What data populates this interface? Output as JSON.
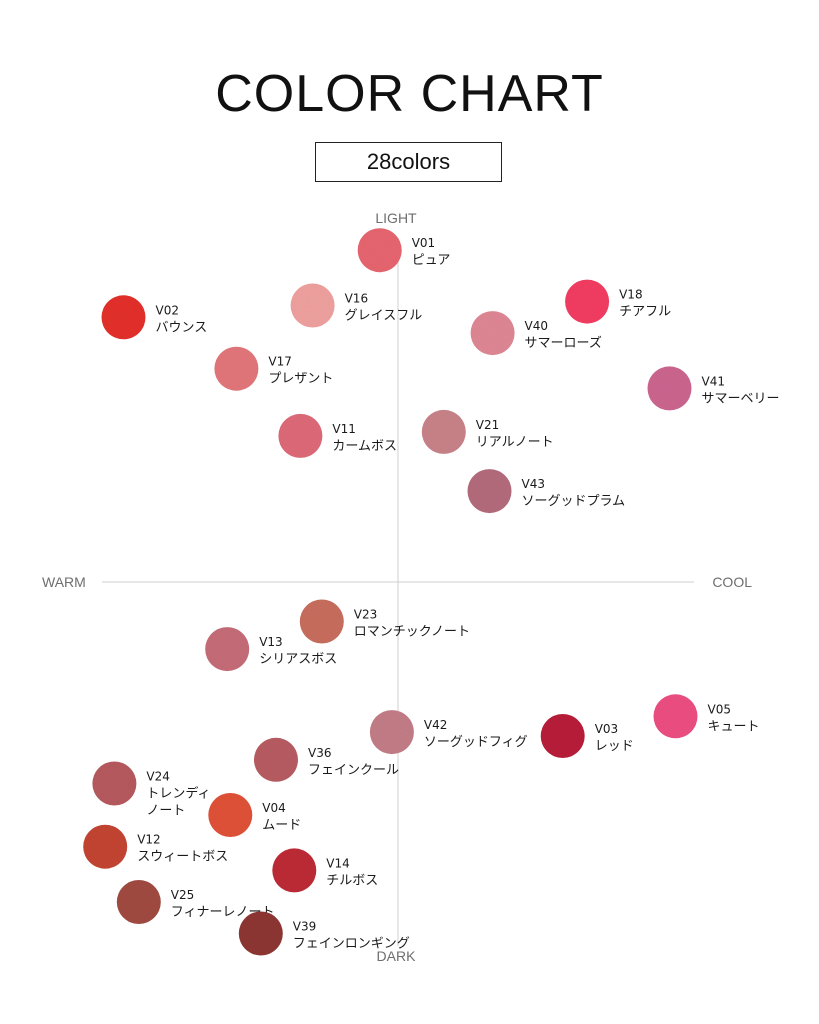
{
  "header": {
    "title": "COLOR CHART",
    "badge": "28colors"
  },
  "chart_data": {
    "type": "scatter",
    "title": "COLOR CHART",
    "subtitle": "28colors",
    "axes": {
      "top": "LIGHT",
      "bottom": "DARK",
      "left": "WARM",
      "right": "COOL"
    },
    "x_direction": "WARM to COOL (negative = warm, positive = cool)",
    "y_direction": "DARK to LIGHT (negative = dark, positive = light)",
    "xlim": [
      -100,
      100
    ],
    "ylim": [
      -100,
      100
    ],
    "grid": false,
    "points": [
      {
        "code": "V01",
        "name": [
          "ピュア"
        ],
        "x": -6,
        "y": 84,
        "color": "#e86670"
      },
      {
        "code": "V02",
        "name": [
          "バウンス"
        ],
        "x": -90,
        "y": 67,
        "color": "#e5312c"
      },
      {
        "code": "V16",
        "name": [
          "グレイスフル"
        ],
        "x": -28,
        "y": 70,
        "color": "#f0a2a0"
      },
      {
        "code": "V18",
        "name": [
          "チアフル"
        ],
        "x": 62,
        "y": 71,
        "color": "#f43d62"
      },
      {
        "code": "V40",
        "name": [
          "サマーローズ"
        ],
        "x": 31,
        "y": 63,
        "color": "#e08895"
      },
      {
        "code": "V17",
        "name": [
          "プレザント"
        ],
        "x": -53,
        "y": 54,
        "color": "#e4777b"
      },
      {
        "code": "V41",
        "name": [
          "サマーベリー"
        ],
        "x": 89,
        "y": 49,
        "color": "#cd6690"
      },
      {
        "code": "V11",
        "name": [
          "カームボス"
        ],
        "x": -32,
        "y": 37,
        "color": "#df6a78"
      },
      {
        "code": "V21",
        "name": [
          "リアルノート"
        ],
        "x": 15,
        "y": 38,
        "color": "#c98389"
      },
      {
        "code": "V43",
        "name": [
          "ソーグッドプラム"
        ],
        "x": 30,
        "y": 23,
        "color": "#b56c7d"
      },
      {
        "code": "V23",
        "name": [
          "ロマンチックノート"
        ],
        "x": -25,
        "y": -10,
        "color": "#c96e5e"
      },
      {
        "code": "V13",
        "name": [
          "シリアスボス"
        ],
        "x": -56,
        "y": -17,
        "color": "#c66d78"
      },
      {
        "code": "V42",
        "name": [
          "ソーグッドフィグ"
        ],
        "x": -2,
        "y": -38,
        "color": "#c47e88"
      },
      {
        "code": "V05",
        "name": [
          "キュート"
        ],
        "x": 91,
        "y": -34,
        "color": "#ee4f82"
      },
      {
        "code": "V03",
        "name": [
          "レッド"
        ],
        "x": 54,
        "y": -39,
        "color": "#b91c3a"
      },
      {
        "code": "V36",
        "name": [
          "フェインクール"
        ],
        "x": -40,
        "y": -45,
        "color": "#b85c62"
      },
      {
        "code": "V24",
        "name": [
          "トレンディ",
          "ノート"
        ],
        "x": -93,
        "y": -51,
        "color": "#b75a5f"
      },
      {
        "code": "V04",
        "name": [
          "ムード"
        ],
        "x": -55,
        "y": -59,
        "color": "#e15238"
      },
      {
        "code": "V12",
        "name": [
          "スウィートボス"
        ],
        "x": -96,
        "y": -67,
        "color": "#c54532"
      },
      {
        "code": "V14",
        "name": [
          "チルボス"
        ],
        "x": -34,
        "y": -73,
        "color": "#be2d37"
      },
      {
        "code": "V25",
        "name": [
          "フィナーレノート"
        ],
        "x": -85,
        "y": -81,
        "color": "#a24b42"
      },
      {
        "code": "V39",
        "name": [
          "フェインロンギング"
        ],
        "x": -45,
        "y": -89,
        "color": "#8e3633"
      }
    ]
  }
}
